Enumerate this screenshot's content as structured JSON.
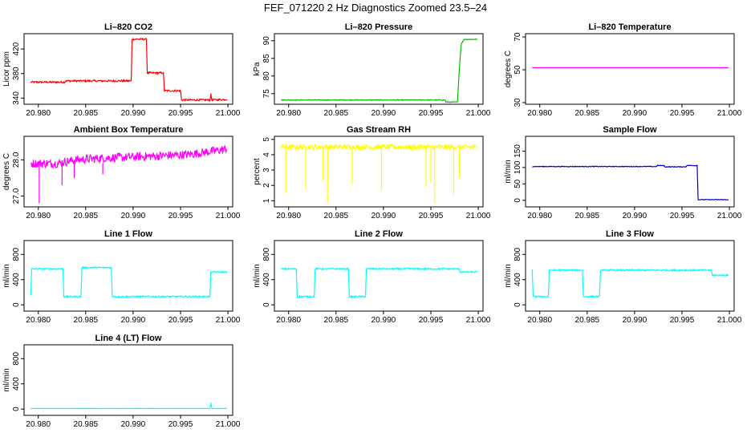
{
  "title": "FEF_071220  2 Hz Diagnostics Zoomed 23.5–24",
  "chart_data": [
    {
      "id": "co2",
      "type": "line",
      "title": "Li–820 CO2",
      "ylabel": "Licor ppm",
      "color": "#ff0000",
      "xlim": [
        20.9785,
        21.0005
      ],
      "ylim": [
        330,
        445
      ],
      "x_ticks": [
        "20.980",
        "20.985",
        "20.990",
        "20.995",
        "21.000"
      ],
      "y_ticks": [
        "340",
        "380",
        "420"
      ],
      "x": [
        20.9792,
        20.9828,
        20.9829,
        20.9898,
        20.9899,
        20.9914,
        20.9915,
        20.9932,
        20.9933,
        20.995,
        20.9951,
        20.9981,
        20.9982,
        20.9983,
        20.9999
      ],
      "values": [
        366,
        366,
        368,
        368,
        436,
        436,
        381,
        381,
        352,
        352,
        337,
        337,
        346,
        337,
        338
      ],
      "noise": 1.5
    },
    {
      "id": "pressure",
      "type": "line",
      "title": "Li–820 Pressure",
      "ylabel": "kPa",
      "color": "#00bb00",
      "xlim": [
        20.9785,
        21.0005
      ],
      "ylim": [
        72,
        92
      ],
      "x_ticks": [
        "20.980",
        "20.985",
        "20.990",
        "20.995",
        "21.000"
      ],
      "y_ticks": [
        "75",
        "80",
        "85",
        "90"
      ],
      "x": [
        20.9792,
        20.9965,
        20.9966,
        20.9978,
        20.998,
        20.9982,
        20.9985,
        20.9999
      ],
      "values": [
        73.2,
        73.2,
        72.6,
        72.6,
        82,
        89,
        90.4,
        90.4
      ],
      "noise": 0.1
    },
    {
      "id": "temperature",
      "type": "line",
      "title": "Li–820 Temperature",
      "ylabel": "degrees C",
      "color": "#ff00ff",
      "xlim": [
        20.9785,
        21.0005
      ],
      "ylim": [
        29,
        72
      ],
      "x_ticks": [
        "20.980",
        "20.985",
        "20.990",
        "20.995",
        "21.000"
      ],
      "y_ticks": [
        "30",
        "50",
        "70"
      ],
      "x": [
        20.9792,
        20.9999
      ],
      "values": [
        51.3,
        51.3
      ],
      "noise": 0
    },
    {
      "id": "ambient",
      "type": "line",
      "title": "Ambient Box Temperature",
      "ylabel": "degrees C",
      "color": "#ff00ff",
      "xlim": [
        20.9785,
        21.0005
      ],
      "ylim": [
        26.7,
        28.65
      ],
      "x_ticks": [
        "20.980",
        "20.985",
        "20.990",
        "20.995",
        "21.000"
      ],
      "y_ticks": [
        "27.0",
        "28.0"
      ],
      "x": [
        20.9792,
        20.982,
        20.984,
        20.987,
        20.992,
        20.996,
        20.9999
      ],
      "values": [
        27.9,
        27.9,
        28.0,
        28.05,
        28.1,
        28.15,
        28.3
      ],
      "noise": 0.12,
      "spikes": [
        {
          "x": 20.9801,
          "value": 26.8
        },
        {
          "x": 20.9825,
          "value": 27.3
        },
        {
          "x": 20.9838,
          "value": 27.5
        },
        {
          "x": 20.9868,
          "value": 27.6
        }
      ]
    },
    {
      "id": "rh",
      "type": "line",
      "title": "Gas Stream RH",
      "ylabel": "percent",
      "color": "#ffff00",
      "xlim": [
        20.9785,
        21.0005
      ],
      "ylim": [
        0.6,
        5.2
      ],
      "x_ticks": [
        "20.980",
        "20.985",
        "20.990",
        "20.995",
        "21.000"
      ],
      "y_ticks": [
        "1",
        "2",
        "3",
        "4",
        "5"
      ],
      "x": [
        20.9792,
        20.9999
      ],
      "values": [
        4.5,
        4.5
      ],
      "noise": 0.17,
      "spikes": [
        {
          "x": 20.9797,
          "value": 1.5
        },
        {
          "x": 20.9818,
          "value": 1.8
        },
        {
          "x": 20.9836,
          "value": 2.3
        },
        {
          "x": 20.9841,
          "value": 0.9
        },
        {
          "x": 20.9867,
          "value": 2.1
        },
        {
          "x": 20.9898,
          "value": 1.6
        },
        {
          "x": 20.9945,
          "value": 1.9
        },
        {
          "x": 20.995,
          "value": 2.2
        },
        {
          "x": 20.9954,
          "value": 0.8
        },
        {
          "x": 20.9974,
          "value": 1.4
        },
        {
          "x": 20.998,
          "value": 2.5
        }
      ]
    },
    {
      "id": "sample",
      "type": "line",
      "title": "Sample Flow",
      "ylabel": "ml/min",
      "color": "#0000cc",
      "xlim": [
        20.9785,
        21.0005
      ],
      "ylim": [
        -20,
        195
      ],
      "x_ticks": [
        "20.980",
        "20.985",
        "20.990",
        "20.995",
        "21.000"
      ],
      "y_ticks": [
        "0",
        "50",
        "100",
        "150"
      ],
      "x": [
        20.9792,
        20.9923,
        20.9924,
        20.9931,
        20.9932,
        20.9954,
        20.9955,
        20.9966,
        20.9967,
        20.9999
      ],
      "values": [
        103,
        103,
        106,
        106,
        102,
        102,
        106,
        106,
        2,
        2
      ],
      "noise": 1
    },
    {
      "id": "line1",
      "type": "line",
      "title": "Line 1 Flow",
      "ylabel": "ml/min",
      "color": "#00ffff",
      "xlim": [
        20.9785,
        21.0005
      ],
      "ylim": [
        -100,
        1020
      ],
      "x_ticks": [
        "20.980",
        "20.985",
        "20.990",
        "20.995",
        "21.000"
      ],
      "y_ticks": [
        "0",
        "400",
        "800"
      ],
      "x": [
        20.9792,
        20.9793,
        20.9826,
        20.9827,
        20.9845,
        20.9846,
        20.9877,
        20.9878,
        20.9981,
        20.9982,
        20.9999
      ],
      "values": [
        140,
        570,
        570,
        130,
        130,
        590,
        590,
        130,
        130,
        520,
        520
      ],
      "noise": 12
    },
    {
      "id": "line2",
      "type": "line",
      "title": "Line 2 Flow",
      "ylabel": "ml/min",
      "color": "#00ffff",
      "xlim": [
        20.9785,
        21.0005
      ],
      "ylim": [
        -100,
        1020
      ],
      "x_ticks": [
        "20.980",
        "20.985",
        "20.990",
        "20.995",
        "21.000"
      ],
      "y_ticks": [
        "0",
        "400",
        "800"
      ],
      "x": [
        20.9792,
        20.9808,
        20.9809,
        20.9827,
        20.9828,
        20.9863,
        20.9864,
        20.9881,
        20.9882,
        20.998,
        20.9981,
        20.9999
      ],
      "values": [
        570,
        570,
        130,
        130,
        570,
        570,
        130,
        130,
        570,
        570,
        520,
        520
      ],
      "noise": 12
    },
    {
      "id": "line3",
      "type": "line",
      "title": "Line 3 Flow",
      "ylabel": "ml/min",
      "color": "#00ffff",
      "xlim": [
        20.9785,
        21.0005
      ],
      "ylim": [
        -100,
        1020
      ],
      "x_ticks": [
        "20.980",
        "20.985",
        "20.990",
        "20.995",
        "21.000"
      ],
      "y_ticks": [
        "0",
        "400",
        "800"
      ],
      "x": [
        20.9792,
        20.9793,
        20.9809,
        20.981,
        20.9845,
        20.9846,
        20.9863,
        20.9864,
        20.9981,
        20.9982,
        20.9999
      ],
      "values": [
        560,
        130,
        130,
        550,
        550,
        130,
        130,
        550,
        550,
        470,
        470
      ],
      "noise": 12
    },
    {
      "id": "line4",
      "type": "line",
      "title": "Line 4 (LT) Flow",
      "ylabel": "ml/min",
      "color": "#00ffff",
      "xlim": [
        20.9785,
        21.0005
      ],
      "ylim": [
        -100,
        1020
      ],
      "x_ticks": [
        "20.980",
        "20.985",
        "20.990",
        "20.995",
        "21.000"
      ],
      "y_ticks": [
        "0",
        "400",
        "800"
      ],
      "x": [
        20.9792,
        20.9981,
        20.9982,
        20.9983,
        20.9999
      ],
      "values": [
        10,
        10,
        100,
        10,
        10
      ],
      "noise": 2
    }
  ]
}
